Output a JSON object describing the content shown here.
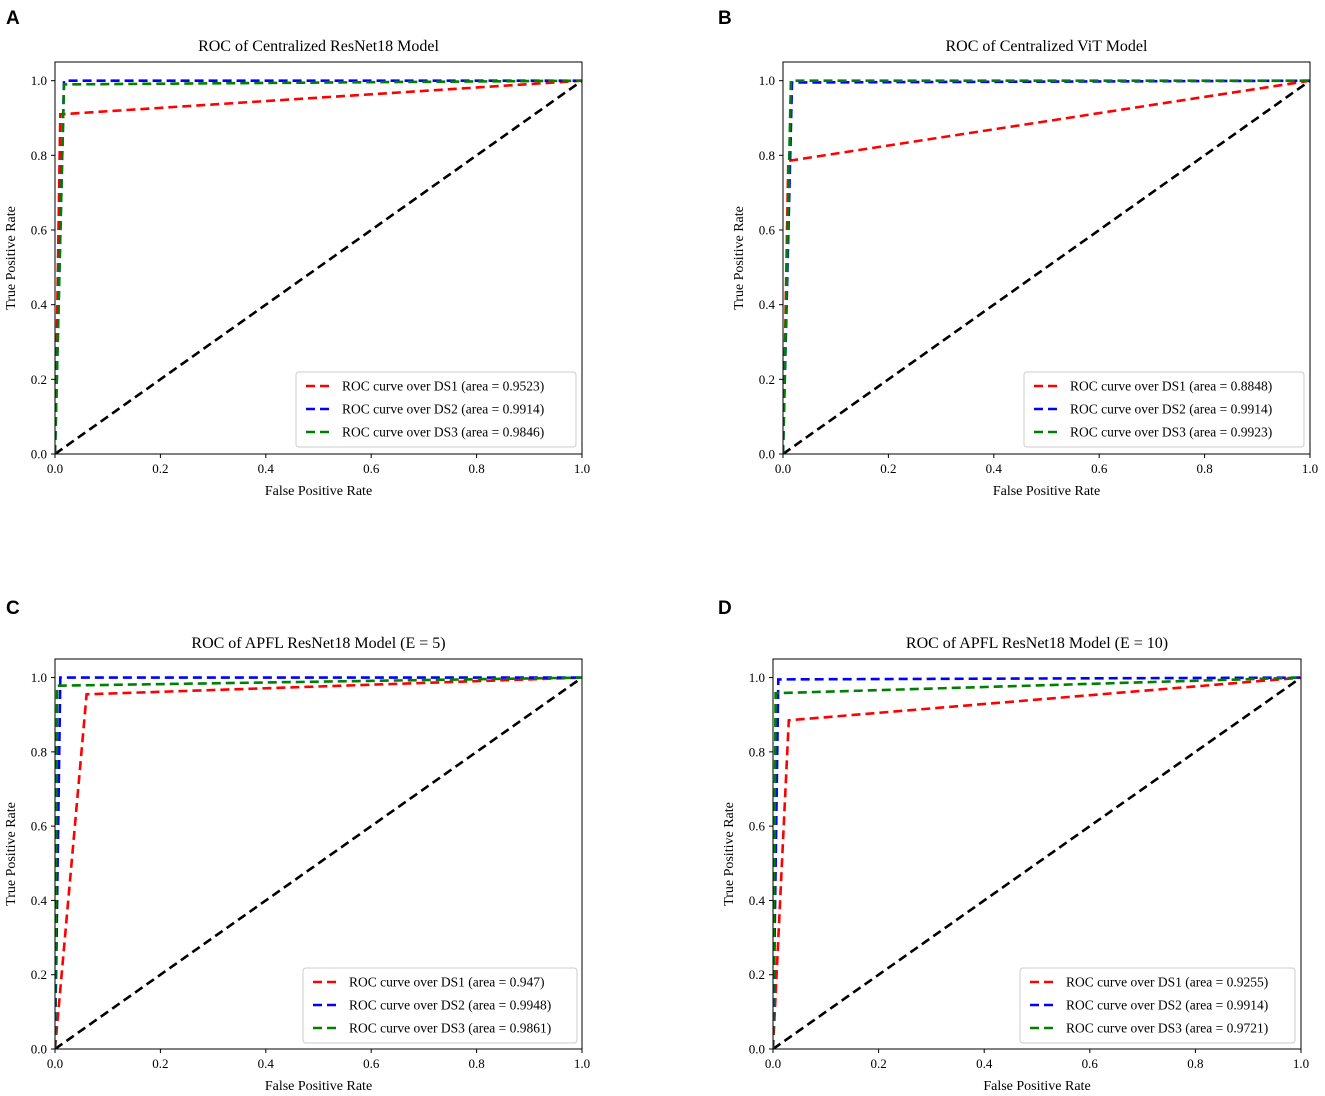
{
  "chart_data": [
    {
      "panel": "A",
      "type": "line",
      "title": "ROC of Centralized ResNet18 Model",
      "xlabel": "False Positive Rate",
      "ylabel": "True Positive Rate",
      "xlim": [
        0,
        1
      ],
      "ylim": [
        0,
        1.05
      ],
      "xticks": [
        "0.0",
        "0.2",
        "0.4",
        "0.6",
        "0.8",
        "1.0"
      ],
      "yticks": [
        "0.0",
        "0.2",
        "0.4",
        "0.6",
        "0.8",
        "1.0"
      ],
      "legend_position": "lower-right",
      "series": [
        {
          "name": "ROC curve over DS1 (area = 0.9523)",
          "color": "#ff0000",
          "x": [
            0,
            0.01,
            1
          ],
          "y": [
            0,
            0.91,
            1
          ]
        },
        {
          "name": "ROC curve over DS2 (area = 0.9914)",
          "color": "#0000ff",
          "x": [
            0,
            0.017,
            1
          ],
          "y": [
            0,
            1.0,
            1
          ]
        },
        {
          "name": "ROC curve over DS3 (area = 0.9846)",
          "color": "#008000",
          "x": [
            0,
            0.017,
            1
          ],
          "y": [
            0,
            0.99,
            1
          ]
        },
        {
          "name": "",
          "color": "#000000",
          "x": [
            0,
            1
          ],
          "y": [
            0,
            1
          ],
          "in_legend": false
        }
      ]
    },
    {
      "panel": "B",
      "type": "line",
      "title": "ROC of Centralized ViT Model",
      "xlabel": "False Positive Rate",
      "ylabel": "True Positive Rate",
      "xlim": [
        0,
        1
      ],
      "ylim": [
        0,
        1.05
      ],
      "xticks": [
        "0.0",
        "0.2",
        "0.4",
        "0.6",
        "0.8",
        "1.0"
      ],
      "yticks": [
        "0.0",
        "0.2",
        "0.4",
        "0.6",
        "0.8",
        "1.0"
      ],
      "legend_position": "lower-right",
      "series": [
        {
          "name": "ROC curve over DS1 (area = 0.8848)",
          "color": "#ff0000",
          "x": [
            0,
            0.01,
            1
          ],
          "y": [
            0,
            0.785,
            1
          ]
        },
        {
          "name": "ROC curve over DS2 (area = 0.9914)",
          "color": "#0000ff",
          "x": [
            0,
            0.017,
            1
          ],
          "y": [
            0,
            0.995,
            1
          ]
        },
        {
          "name": "ROC curve over DS3 (area = 0.9923)",
          "color": "#008000",
          "x": [
            0,
            0.015,
            1
          ],
          "y": [
            0,
            1.0,
            1
          ]
        },
        {
          "name": "",
          "color": "#000000",
          "x": [
            0,
            1
          ],
          "y": [
            0,
            1
          ],
          "in_legend": false
        }
      ]
    },
    {
      "panel": "C",
      "type": "line",
      "title": "ROC of APFL ResNet18 Model (E = 5)",
      "xlabel": "False Positive Rate",
      "ylabel": "True Positive Rate",
      "xlim": [
        0,
        1
      ],
      "ylim": [
        0,
        1.05
      ],
      "xticks": [
        "0.0",
        "0.2",
        "0.4",
        "0.6",
        "0.8",
        "1.0"
      ],
      "yticks": [
        "0.0",
        "0.2",
        "0.4",
        "0.6",
        "0.8",
        "1.0"
      ],
      "legend_position": "lower-right",
      "series": [
        {
          "name": "ROC curve over DS1 (area = 0.947)",
          "color": "#ff0000",
          "x": [
            0,
            0.06,
            1
          ],
          "y": [
            0,
            0.955,
            1
          ]
        },
        {
          "name": "ROC curve over DS2 (area = 0.9948)",
          "color": "#0000ff",
          "x": [
            0,
            0.01,
            1
          ],
          "y": [
            0,
            1.0,
            1
          ]
        },
        {
          "name": "ROC curve over DS3 (area = 0.9861)",
          "color": "#008000",
          "x": [
            0,
            0.004,
            1
          ],
          "y": [
            0,
            0.978,
            1
          ]
        },
        {
          "name": "",
          "color": "#000000",
          "x": [
            0,
            1
          ],
          "y": [
            0,
            1
          ],
          "in_legend": false
        }
      ]
    },
    {
      "panel": "D",
      "type": "line",
      "title": "ROC of APFL ResNet18 Model (E = 10)",
      "xlabel": "False Positive Rate",
      "ylabel": "True Positive Rate",
      "xlim": [
        0,
        1
      ],
      "ylim": [
        0,
        1.05
      ],
      "xticks": [
        "0.0",
        "0.2",
        "0.4",
        "0.6",
        "0.8",
        "1.0"
      ],
      "yticks": [
        "0.0",
        "0.2",
        "0.4",
        "0.6",
        "0.8",
        "1.0"
      ],
      "legend_position": "lower-right",
      "series": [
        {
          "name": "ROC curve over DS1 (area = 0.9255)",
          "color": "#ff0000",
          "x": [
            0,
            0.03,
            1
          ],
          "y": [
            0,
            0.885,
            1
          ]
        },
        {
          "name": "ROC curve over DS2 (area = 0.9914)",
          "color": "#0000ff",
          "x": [
            0,
            0.01,
            1
          ],
          "y": [
            0,
            0.995,
            1
          ]
        },
        {
          "name": "ROC curve over DS3 (area = 0.9721)",
          "color": "#008000",
          "x": [
            0,
            0.005,
            1
          ],
          "y": [
            0,
            0.958,
            1
          ]
        },
        {
          "name": "",
          "color": "#000000",
          "x": [
            0,
            1
          ],
          "y": [
            0,
            1
          ],
          "in_legend": false
        }
      ]
    }
  ]
}
